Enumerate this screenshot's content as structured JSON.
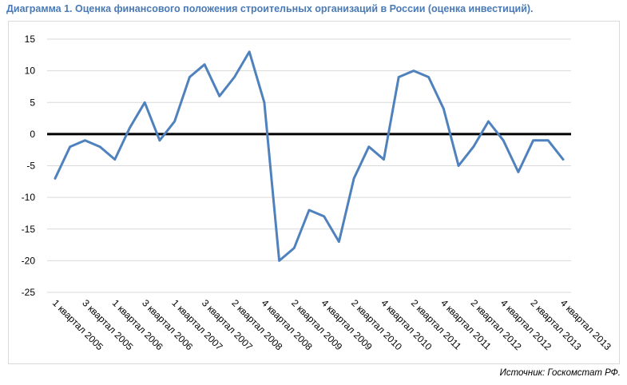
{
  "title": "Диаграмма 1. Оценка финансового положения строительных организаций в России (оценка инвестиций).",
  "source": "Источник: Госкомстат РФ.",
  "chart_data": {
    "type": "line",
    "title": "Диаграмма 1. Оценка финансового положения строительных организаций в России (оценка инвестиций).",
    "ylim": [
      -25,
      15
    ],
    "yticks": [
      15,
      10,
      5,
      0,
      -5,
      -10,
      -15,
      -20,
      -25
    ],
    "grid": true,
    "zero_line": true,
    "line_color": "#4f81bd",
    "x_labels": [
      "1 квартал 2005",
      "3 квартал 2005",
      "1 квартал 2006",
      "3 квартал 2006",
      "1 квартал 2007",
      "3 квартал 2007",
      "2 квартал 2008",
      "4 квартал 2008",
      "2 квартал 2009",
      "4 квартал 2009",
      "2 квартал 2010",
      "4 квартал 2010",
      "2 квартал 2011",
      "4 квартал 2011",
      "2 квартал 2012",
      "4 квартал 2012",
      "2 квартал 2013",
      "4 квартал 2013"
    ],
    "series": [
      {
        "values": [
          -7,
          -2,
          -1,
          -2,
          -4,
          1,
          5,
          -1,
          2,
          9,
          11,
          6,
          9,
          13,
          5,
          -20,
          -18,
          -12,
          -13,
          -17,
          -7,
          -2,
          -4,
          9,
          10,
          9,
          4,
          -5,
          -2,
          2,
          -1,
          -6,
          -1,
          -1,
          -4
        ]
      }
    ]
  }
}
